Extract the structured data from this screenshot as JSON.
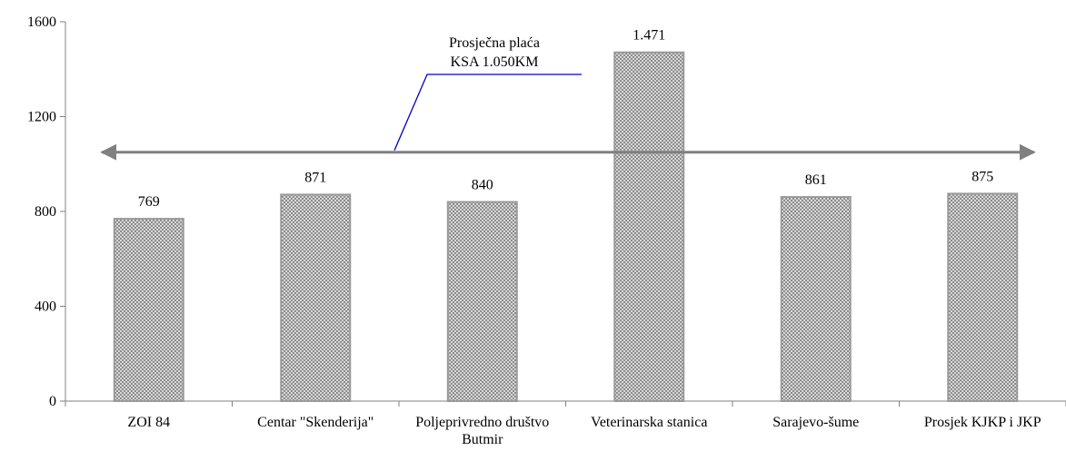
{
  "chart_data": {
    "type": "bar",
    "categories": [
      "ZOI 84",
      "Centar \"Skenderija\"",
      "Poljeprivredno društvo Butmir",
      "Veterinarska stanica",
      "Sarajevo-šume",
      "Prosjek KJKP i JKP"
    ],
    "values": [
      769,
      871,
      840,
      1471,
      861,
      875
    ],
    "value_labels": [
      "769",
      "871",
      "840",
      "1.471",
      "861",
      "875"
    ],
    "color": "#9a9a9a",
    "ylim": [
      0,
      1600
    ],
    "yticks": [
      0,
      400,
      800,
      1200,
      1600
    ],
    "reference_line": 1050,
    "annotation": [
      "Prosječna plaća",
      "KSA 1.050KM"
    ]
  }
}
